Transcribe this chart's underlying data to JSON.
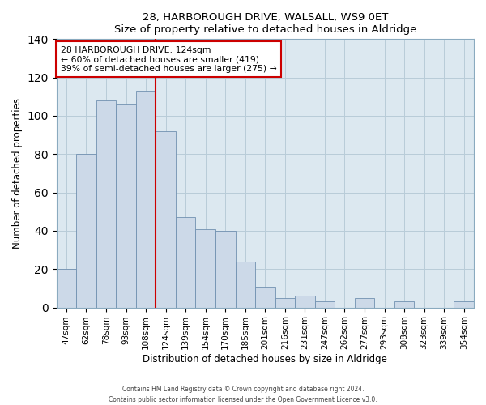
{
  "title": "28, HARBOROUGH DRIVE, WALSALL, WS9 0ET",
  "subtitle": "Size of property relative to detached houses in Aldridge",
  "xlabel": "Distribution of detached houses by size in Aldridge",
  "ylabel": "Number of detached properties",
  "bar_labels": [
    "47sqm",
    "62sqm",
    "78sqm",
    "93sqm",
    "108sqm",
    "124sqm",
    "139sqm",
    "154sqm",
    "170sqm",
    "185sqm",
    "201sqm",
    "216sqm",
    "231sqm",
    "247sqm",
    "262sqm",
    "277sqm",
    "293sqm",
    "308sqm",
    "323sqm",
    "339sqm",
    "354sqm"
  ],
  "bar_heights": [
    20,
    80,
    108,
    106,
    113,
    92,
    47,
    41,
    40,
    24,
    11,
    5,
    6,
    3,
    0,
    5,
    0,
    3,
    0,
    0,
    3
  ],
  "bar_color": "#ccd9e8",
  "bar_edge_color": "#7090b0",
  "vline_color": "#cc0000",
  "annotation_title": "28 HARBOROUGH DRIVE: 124sqm",
  "annotation_line1": "← 60% of detached houses are smaller (419)",
  "annotation_line2": "39% of semi-detached houses are larger (275) →",
  "annotation_box_edge": "#cc0000",
  "ylim": [
    0,
    140
  ],
  "yticks": [
    0,
    20,
    40,
    60,
    80,
    100,
    120,
    140
  ],
  "bg_color": "#dce8f0",
  "grid_color": "#b8ccd8",
  "footer1": "Contains HM Land Registry data © Crown copyright and database right 2024.",
  "footer2": "Contains public sector information licensed under the Open Government Licence v3.0."
}
